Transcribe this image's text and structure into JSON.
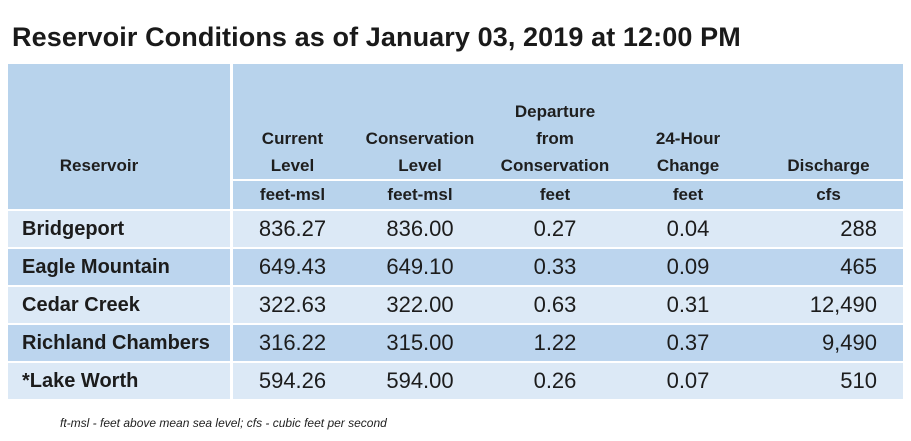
{
  "title": "Reservoir Conditions as of January 03, 2019 at 12:00 PM",
  "columns": [
    {
      "line1": "",
      "line2": "",
      "line3": "",
      "line4": "Reservoir",
      "unit": ""
    },
    {
      "line1": "",
      "line2": "Current",
      "line3": "Level",
      "unit": "feet-msl"
    },
    {
      "line1": "",
      "line2": "Conservation",
      "line3": "Level",
      "unit": "feet-msl"
    },
    {
      "line1": "Departure",
      "line2": "from",
      "line3": "Conservation",
      "unit": "feet"
    },
    {
      "line1": "",
      "line2": "24-Hour",
      "line3": "Change",
      "unit": "feet"
    },
    {
      "line1": "",
      "line2": "",
      "line3": "Discharge",
      "unit": "cfs"
    }
  ],
  "rows": [
    {
      "name": "Bridgeport",
      "current": "836.27",
      "conservation": "836.00",
      "departure": "0.27",
      "change": "0.04",
      "discharge": "288"
    },
    {
      "name": "Eagle Mountain",
      "current": "649.43",
      "conservation": "649.10",
      "departure": "0.33",
      "change": "0.09",
      "discharge": "465"
    },
    {
      "name": "Cedar Creek",
      "current": "322.63",
      "conservation": "322.00",
      "departure": "0.63",
      "change": "0.31",
      "discharge": "12,490"
    },
    {
      "name": "Richland Chambers",
      "current": "316.22",
      "conservation": "315.00",
      "departure": "1.22",
      "change": "0.37",
      "discharge": "9,490"
    },
    {
      "name": "*Lake Worth",
      "current": "594.26",
      "conservation": "594.00",
      "departure": "0.26",
      "change": "0.07",
      "discharge": "510"
    }
  ],
  "footnote": "ft-msl - feet above mean sea level; cfs - cubic feet per second",
  "colors": {
    "header_bg": "#b8d3ec",
    "row_light": "#dce9f6",
    "row_dark": "#bcd5ee"
  }
}
